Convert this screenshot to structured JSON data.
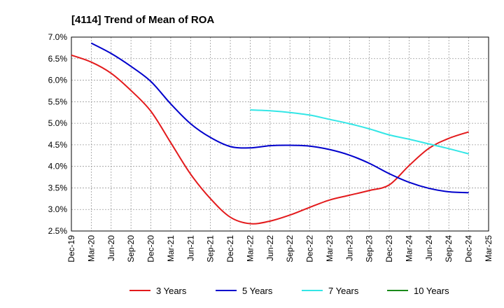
{
  "chart_data": {
    "type": "line",
    "title": "[4114]  Trend of Mean of ROA",
    "xlabel": "",
    "ylabel": "",
    "x": [
      "Dec-19",
      "Mar-20",
      "Jun-20",
      "Sep-20",
      "Dec-20",
      "Mar-21",
      "Jun-21",
      "Sep-21",
      "Dec-21",
      "Mar-22",
      "Jun-22",
      "Sep-22",
      "Dec-22",
      "Mar-23",
      "Jun-23",
      "Sep-23",
      "Dec-23",
      "Mar-24",
      "Jun-24",
      "Sep-24",
      "Dec-24",
      "Mar-25"
    ],
    "yticks": [
      "7.0%",
      "6.5%",
      "6.0%",
      "5.5%",
      "5.0%",
      "4.5%",
      "4.0%",
      "3.5%",
      "3.0%",
      "2.5%"
    ],
    "ylim": [
      2.5,
      7.0
    ],
    "grid": true,
    "legend_position": "bottom",
    "series": [
      {
        "name": "3 Years",
        "color": "#e31a1c",
        "values": [
          6.58,
          6.42,
          6.16,
          5.76,
          5.28,
          4.55,
          3.82,
          3.25,
          2.82,
          2.67,
          2.73,
          2.87,
          3.05,
          3.22,
          3.33,
          3.44,
          3.57,
          4.02,
          4.42,
          4.65,
          4.8,
          null
        ]
      },
      {
        "name": "5 Years",
        "color": "#0000cc",
        "values": [
          null,
          6.86,
          6.62,
          6.32,
          5.97,
          5.45,
          4.99,
          4.67,
          4.46,
          4.43,
          4.48,
          4.49,
          4.47,
          4.39,
          4.26,
          4.07,
          3.83,
          3.63,
          3.49,
          3.41,
          3.39,
          null
        ]
      },
      {
        "name": "7 Years",
        "color": "#33e6e6",
        "values": [
          null,
          null,
          null,
          null,
          null,
          null,
          null,
          null,
          null,
          5.31,
          5.29,
          5.25,
          5.19,
          5.09,
          4.99,
          4.87,
          4.73,
          4.63,
          4.52,
          4.41,
          4.29,
          null
        ]
      },
      {
        "name": "10 Years",
        "color": "#1a8a1a",
        "values": [
          null,
          null,
          null,
          null,
          null,
          null,
          null,
          null,
          null,
          null,
          null,
          null,
          null,
          null,
          null,
          null,
          null,
          null,
          null,
          null,
          null,
          null
        ]
      }
    ]
  }
}
